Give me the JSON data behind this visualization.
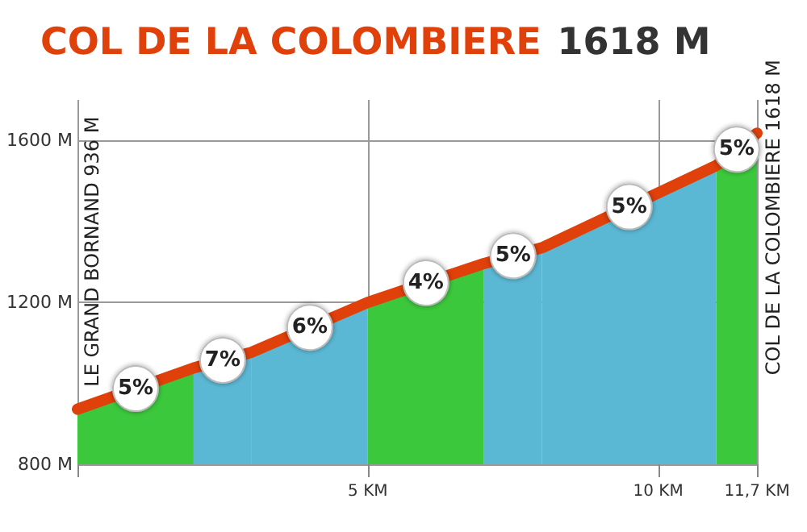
{
  "chart_data": {
    "type": "area",
    "title": "COL DE LA COLOMBIERE",
    "subtitle": "1618 M",
    "series": [
      {
        "color": "#3cc83c",
        "x": [
          0,
          2
        ],
        "values": [
          936,
          1038
        ]
      },
      {
        "color": "#5bb8d4",
        "x": [
          2,
          3
        ],
        "values": [
          1038,
          1077
        ]
      },
      {
        "color": "#5bb8d4",
        "x": [
          3,
          5
        ],
        "values": [
          1077,
          1200
        ]
      },
      {
        "color": "#3cc83c",
        "x": [
          5,
          7
        ],
        "values": [
          1200,
          1296
        ]
      },
      {
        "color": "#5bb8d4",
        "x": [
          7,
          8
        ],
        "values": [
          1296,
          1335
        ]
      },
      {
        "color": "#5bb8d4",
        "x": [
          8,
          11
        ],
        "values": [
          1335,
          1538
        ]
      },
      {
        "color": "#3cc83c",
        "x": [
          11,
          11.7
        ],
        "values": [
          1538,
          1618
        ]
      },
      {
        "type": "line",
        "color": "#e0400a",
        "x": [
          0,
          2,
          3,
          5,
          7,
          8,
          11,
          11.7
        ],
        "values": [
          936,
          1038,
          1077,
          1200,
          1296,
          1335,
          1538,
          1618
        ]
      }
    ],
    "annotations": [
      {
        "text": "5%",
        "x": 1,
        "y": 987
      },
      {
        "text": "7%",
        "x": 2.5,
        "y": 1057
      },
      {
        "text": "6%",
        "x": 4,
        "y": 1138
      },
      {
        "text": "4%",
        "x": 6,
        "y": 1248
      },
      {
        "text": "5%",
        "x": 7.5,
        "y": 1315
      },
      {
        "text": "5%",
        "x": 9.5,
        "y": 1436
      },
      {
        "text": "5%",
        "x": 11.35,
        "y": 1578
      },
      {
        "text": "LE GRAND BORNAND 936 M",
        "x": 0,
        "y": 936
      },
      {
        "text": "COL DE LA COLOMBIERE 1618 M",
        "x": 11.7,
        "y": 1618
      }
    ],
    "xlim": [
      0,
      11.7
    ],
    "xticks": [
      {
        "value": 0,
        "label": null
      },
      {
        "value": 5,
        "label": "5 KM"
      },
      {
        "value": 10,
        "label": "10 KM"
      },
      {
        "value": 11.7,
        "label": "11,7 KM"
      }
    ],
    "ylim": [
      800,
      1700
    ],
    "yticks": [
      {
        "value": 800,
        "label": "800 M"
      },
      {
        "value": 1200,
        "label": "1200 M"
      },
      {
        "value": 1600,
        "label": "1600 M"
      }
    ],
    "grid": true
  }
}
